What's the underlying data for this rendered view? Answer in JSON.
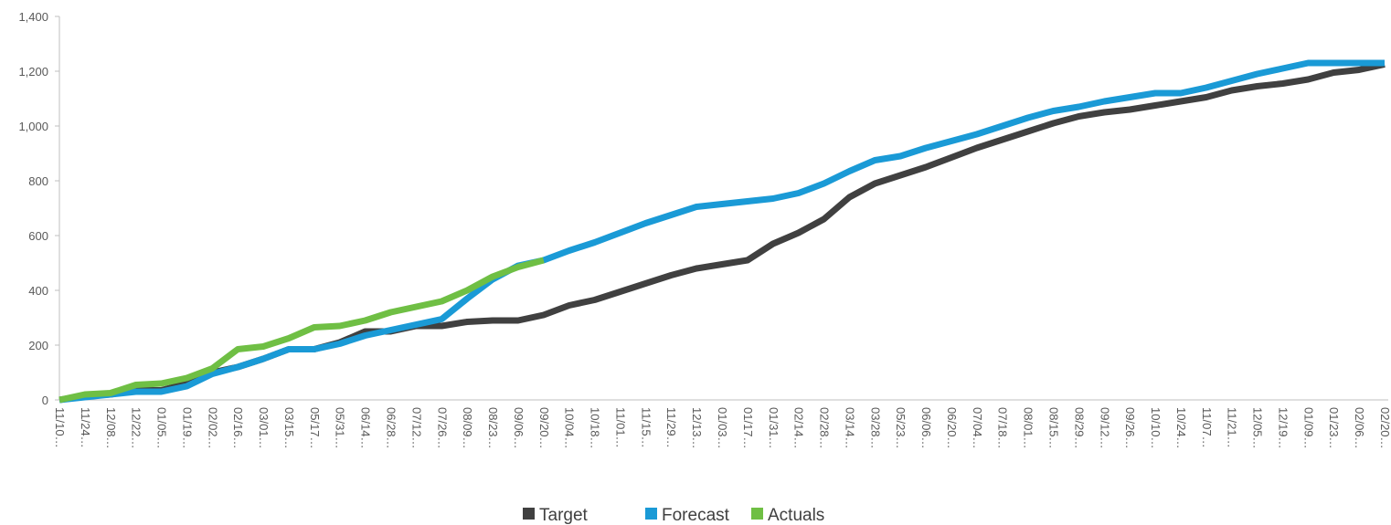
{
  "chart_data": {
    "type": "line",
    "categories": [
      "11/10…",
      "11/24…",
      "12/08…",
      "12/22…",
      "01/05…",
      "01/19…",
      "02/02…",
      "02/16…",
      "03/01…",
      "03/15…",
      "05/17…",
      "05/31…",
      "06/14…",
      "06/28…",
      "07/12…",
      "07/26…",
      "08/09…",
      "08/23…",
      "09/06…",
      "09/20…",
      "10/04…",
      "10/18…",
      "11/01…",
      "11/15…",
      "11/29…",
      "12/13…",
      "01/03…",
      "01/17…",
      "01/31…",
      "02/14…",
      "02/28…",
      "03/14…",
      "03/28…",
      "05/23…",
      "06/06…",
      "06/20…",
      "07/04…",
      "07/18…",
      "08/01…",
      "08/15…",
      "08/29…",
      "09/12…",
      "09/26…",
      "10/10…",
      "10/24…",
      "11/07…",
      "11/21…",
      "12/05…",
      "12/19…",
      "01/09…",
      "01/23…",
      "02/06…",
      "02/20…"
    ],
    "series": [
      {
        "name": "Target",
        "color": "#404040",
        "values": [
          0,
          15,
          20,
          35,
          35,
          60,
          100,
          120,
          150,
          185,
          185,
          210,
          250,
          250,
          270,
          270,
          285,
          290,
          290,
          310,
          345,
          365,
          395,
          425,
          455,
          480,
          495,
          510,
          570,
          610,
          660,
          740,
          790,
          820,
          850,
          885,
          920,
          950,
          980,
          1010,
          1035,
          1050,
          1060,
          1075,
          1090,
          1105,
          1130,
          1145,
          1155,
          1170,
          1195,
          1205,
          1225
        ]
      },
      {
        "name": "Forecast",
        "color": "#1a9ad6",
        "values": [
          0,
          10,
          20,
          30,
          30,
          50,
          95,
          120,
          150,
          185,
          185,
          205,
          235,
          255,
          275,
          295,
          370,
          440,
          490,
          510,
          545,
          575,
          610,
          645,
          675,
          705,
          715,
          725,
          735,
          755,
          790,
          835,
          875,
          890,
          920,
          945,
          970,
          1000,
          1030,
          1055,
          1070,
          1090,
          1105,
          1120,
          1120,
          1140,
          1165,
          1190,
          1210,
          1230,
          1230,
          1230,
          1230
        ]
      },
      {
        "name": "Actuals",
        "color": "#6fbf44",
        "values": [
          0,
          20,
          25,
          55,
          60,
          80,
          115,
          185,
          195,
          225,
          265,
          270,
          290,
          320,
          340,
          360,
          400,
          450,
          485,
          510,
          null,
          null,
          null,
          null,
          null,
          null,
          null,
          null,
          null,
          null,
          null,
          null,
          null,
          null,
          null,
          null,
          null,
          null,
          null,
          null,
          null,
          null,
          null,
          null,
          null,
          null,
          null,
          null,
          null,
          null,
          null,
          null,
          null
        ]
      }
    ],
    "ylim": [
      0,
      1400
    ],
    "yticks": [
      0,
      200,
      400,
      600,
      800,
      {
        "value": 1000,
        "label": "1,000"
      },
      {
        "value": 1200,
        "label": "1,200"
      },
      {
        "value": 1400,
        "label": "1,400"
      }
    ],
    "grid": false,
    "legend": "bottom"
  }
}
